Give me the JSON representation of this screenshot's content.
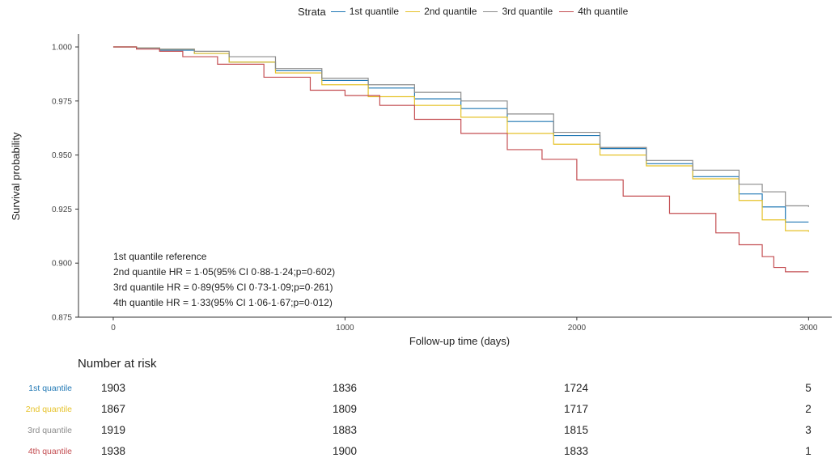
{
  "legend": {
    "title": "Strata",
    "items": [
      {
        "label": "1st quantile",
        "color": "#1f77b4"
      },
      {
        "label": "2nd quantile",
        "color": "#e6c229"
      },
      {
        "label": "3rd quantile",
        "color": "#8c8c8c"
      },
      {
        "label": "4th quantile",
        "color": "#c44e52"
      }
    ]
  },
  "annotations": [
    "1st quantile reference",
    "2nd quantile HR = 1·05(95% CI 0·88-1·24;p=0·602)",
    "3rd quantile HR = 0·89(95% CI 0·73-1·09;p=0·261)",
    "4th quantile HR = 1·33(95% CI 1·06-1·67;p=0·012)"
  ],
  "chart_data": {
    "type": "line",
    "xlabel": "Follow-up time (days)",
    "ylabel": "Survival probability",
    "xlim": [
      -150,
      3100
    ],
    "ylim": [
      0.875,
      1.006
    ],
    "xticks": [
      0,
      1000,
      2000,
      3000
    ],
    "yticks": [
      0.875,
      0.9,
      0.925,
      0.95,
      0.975,
      1.0
    ],
    "ytick_labels": [
      "0.875",
      "0.900",
      "0.925",
      "0.950",
      "0.975",
      "1.000"
    ],
    "grid": false,
    "series": [
      {
        "name": "1st quantile",
        "color": "#1f77b4",
        "x": [
          0,
          100,
          200,
          350,
          500,
          700,
          900,
          1100,
          1300,
          1500,
          1700,
          1900,
          2100,
          2300,
          2500,
          2700,
          2800,
          2900,
          3000
        ],
        "y": [
          1.0,
          0.9995,
          0.9985,
          0.997,
          0.993,
          0.989,
          0.9845,
          0.981,
          0.976,
          0.9715,
          0.9655,
          0.959,
          0.953,
          0.946,
          0.94,
          0.932,
          0.926,
          0.919,
          0.919
        ]
      },
      {
        "name": "2nd quantile",
        "color": "#e6c229",
        "x": [
          0,
          100,
          200,
          350,
          500,
          700,
          900,
          1100,
          1300,
          1500,
          1700,
          1900,
          2100,
          2300,
          2500,
          2700,
          2800,
          2900,
          3000
        ],
        "y": [
          1.0,
          0.9995,
          0.999,
          0.997,
          0.993,
          0.988,
          0.9825,
          0.977,
          0.973,
          0.9675,
          0.96,
          0.955,
          0.95,
          0.945,
          0.939,
          0.929,
          0.92,
          0.915,
          0.9145
        ]
      },
      {
        "name": "3rd quantile",
        "color": "#8c8c8c",
        "x": [
          0,
          100,
          200,
          350,
          500,
          700,
          900,
          1100,
          1300,
          1500,
          1700,
          1900,
          2100,
          2300,
          2500,
          2700,
          2800,
          2900,
          3000
        ],
        "y": [
          1.0,
          0.9995,
          0.999,
          0.998,
          0.9955,
          0.99,
          0.9855,
          0.9825,
          0.979,
          0.975,
          0.969,
          0.9605,
          0.9535,
          0.9475,
          0.943,
          0.9365,
          0.933,
          0.9265,
          0.926
        ]
      },
      {
        "name": "4th quantile",
        "color": "#c44e52",
        "x": [
          0,
          100,
          200,
          300,
          450,
          650,
          850,
          1000,
          1150,
          1300,
          1500,
          1700,
          1850,
          2000,
          2200,
          2400,
          2600,
          2700,
          2800,
          2850,
          2900,
          3000
        ],
        "y": [
          1.0,
          0.999,
          0.998,
          0.9955,
          0.992,
          0.986,
          0.98,
          0.9775,
          0.973,
          0.9665,
          0.96,
          0.9525,
          0.948,
          0.9385,
          0.931,
          0.923,
          0.914,
          0.9085,
          0.903,
          0.898,
          0.896,
          0.896
        ]
      }
    ]
  },
  "risk_table": {
    "title": "Number at risk",
    "times": [
      0,
      1000,
      2000,
      3000
    ],
    "rows": [
      {
        "label": "1st quantile",
        "color": "#1f77b4",
        "values": [
          "1903",
          "1836",
          "1724",
          "5"
        ]
      },
      {
        "label": "2nd quantile",
        "color": "#e6c229",
        "values": [
          "1867",
          "1809",
          "1717",
          "2"
        ]
      },
      {
        "label": "3rd quantile",
        "color": "#8c8c8c",
        "values": [
          "1919",
          "1883",
          "1815",
          "3"
        ]
      },
      {
        "label": "4th quantile",
        "color": "#c44e52",
        "values": [
          "1938",
          "1900",
          "1833",
          "1"
        ]
      }
    ]
  }
}
